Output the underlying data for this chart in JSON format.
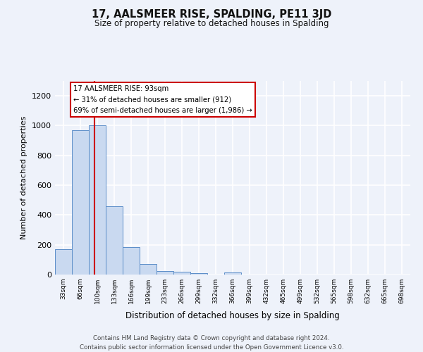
{
  "title": "17, AALSMEER RISE, SPALDING, PE11 3JD",
  "subtitle": "Size of property relative to detached houses in Spalding",
  "xlabel": "Distribution of detached houses by size in Spalding",
  "ylabel": "Number of detached properties",
  "bar_labels": [
    "33sqm",
    "66sqm",
    "100sqm",
    "133sqm",
    "166sqm",
    "199sqm",
    "233sqm",
    "266sqm",
    "299sqm",
    "332sqm",
    "366sqm",
    "399sqm",
    "432sqm",
    "465sqm",
    "499sqm",
    "532sqm",
    "565sqm",
    "598sqm",
    "632sqm",
    "665sqm",
    "698sqm"
  ],
  "bar_values": [
    170,
    970,
    1000,
    460,
    185,
    70,
    22,
    18,
    10,
    0,
    12,
    0,
    0,
    0,
    0,
    0,
    0,
    0,
    0,
    0,
    0
  ],
  "bar_color": "#c9d9f0",
  "bar_edge_color": "#5b8dc8",
  "property_line_color": "#cc0000",
  "ylim": [
    0,
    1300
  ],
  "yticks": [
    0,
    200,
    400,
    600,
    800,
    1000,
    1200
  ],
  "annotation_title": "17 AALSMEER RISE: 93sqm",
  "annotation_line1": "← 31% of detached houses are smaller (912)",
  "annotation_line2": "69% of semi-detached houses are larger (1,986) →",
  "annotation_box_color": "#ffffff",
  "annotation_box_edge": "#cc0000",
  "footer_line1": "Contains HM Land Registry data © Crown copyright and database right 2024.",
  "footer_line2": "Contains public sector information licensed under the Open Government Licence v3.0.",
  "bg_color": "#eef2fa",
  "grid_color": "#ffffff"
}
